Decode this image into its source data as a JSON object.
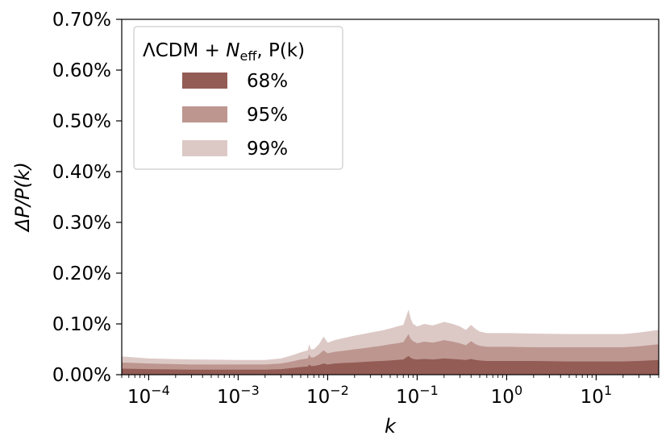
{
  "chart_data": {
    "type": "area",
    "title": "",
    "xlabel": "k",
    "ylabel": "ΔP/P(k)",
    "xscale": "log",
    "xlim": [
      5e-05,
      50
    ],
    "ylim": [
      0,
      0.7
    ],
    "yticks": [
      {
        "value": 0.0,
        "label": "0.00%"
      },
      {
        "value": 0.1,
        "label": "0.10%"
      },
      {
        "value": 0.2,
        "label": "0.20%"
      },
      {
        "value": 0.3,
        "label": "0.30%"
      },
      {
        "value": 0.4,
        "label": "0.40%"
      },
      {
        "value": 0.5,
        "label": "0.50%"
      },
      {
        "value": 0.6,
        "label": "0.60%"
      },
      {
        "value": 0.7,
        "label": "0.70%"
      }
    ],
    "xticks": [
      {
        "value": 0.0001,
        "base": "10",
        "exp": "−4"
      },
      {
        "value": 0.001,
        "base": "10",
        "exp": "−3"
      },
      {
        "value": 0.01,
        "base": "10",
        "exp": "−2"
      },
      {
        "value": 0.1,
        "base": "10",
        "exp": "−1"
      },
      {
        "value": 1,
        "base": "10",
        "exp": "0"
      },
      {
        "value": 10,
        "base": "10",
        "exp": "1"
      }
    ],
    "grid": false,
    "legend": {
      "placement": "top-left",
      "title": "ΛCDM + N_eff, P(k)",
      "title_parts": {
        "pre": "ΛCDM + ",
        "var": "N",
        "sub": "eff",
        "post": ", P(k)"
      }
    },
    "x": [
      5e-05,
      0.0001,
      0.0003,
      0.001,
      0.002,
      0.003,
      0.004,
      0.005,
      0.006,
      0.0062,
      0.0065,
      0.007,
      0.008,
      0.009,
      0.01,
      0.012,
      0.015,
      0.02,
      0.025,
      0.03,
      0.04,
      0.05,
      0.06,
      0.07,
      0.08,
      0.085,
      0.09,
      0.1,
      0.12,
      0.15,
      0.2,
      0.25,
      0.3,
      0.35,
      0.4,
      0.45,
      0.5,
      0.6,
      0.8,
      1,
      2,
      5,
      10,
      20,
      30,
      50
    ],
    "series": [
      {
        "name": "68%",
        "color": "#935c55",
        "values": [
          0.012,
          0.011,
          0.01,
          0.01,
          0.01,
          0.011,
          0.013,
          0.015,
          0.016,
          0.02,
          0.017,
          0.017,
          0.019,
          0.022,
          0.02,
          0.022,
          0.023,
          0.024,
          0.025,
          0.026,
          0.027,
          0.028,
          0.029,
          0.03,
          0.037,
          0.033,
          0.031,
          0.03,
          0.031,
          0.03,
          0.032,
          0.031,
          0.03,
          0.029,
          0.031,
          0.029,
          0.028,
          0.027,
          0.027,
          0.027,
          0.027,
          0.026,
          0.026,
          0.026,
          0.027,
          0.029
        ]
      },
      {
        "name": "95%",
        "color": "#bd9690",
        "values": [
          0.024,
          0.022,
          0.02,
          0.02,
          0.02,
          0.022,
          0.026,
          0.03,
          0.032,
          0.04,
          0.034,
          0.034,
          0.04,
          0.048,
          0.042,
          0.045,
          0.047,
          0.05,
          0.052,
          0.054,
          0.057,
          0.06,
          0.062,
          0.064,
          0.08,
          0.07,
          0.066,
          0.062,
          0.065,
          0.063,
          0.068,
          0.065,
          0.062,
          0.058,
          0.066,
          0.06,
          0.057,
          0.055,
          0.055,
          0.055,
          0.054,
          0.054,
          0.054,
          0.054,
          0.056,
          0.06
        ]
      },
      {
        "name": "99%",
        "color": "#dcc9c6",
        "values": [
          0.036,
          0.032,
          0.03,
          0.029,
          0.029,
          0.032,
          0.038,
          0.044,
          0.048,
          0.06,
          0.05,
          0.05,
          0.06,
          0.075,
          0.063,
          0.068,
          0.072,
          0.077,
          0.08,
          0.083,
          0.087,
          0.091,
          0.095,
          0.098,
          0.128,
          0.11,
          0.1,
          0.095,
          0.1,
          0.097,
          0.104,
          0.1,
          0.095,
          0.088,
          0.098,
          0.09,
          0.085,
          0.082,
          0.082,
          0.082,
          0.081,
          0.08,
          0.08,
          0.08,
          0.083,
          0.088
        ]
      }
    ]
  }
}
